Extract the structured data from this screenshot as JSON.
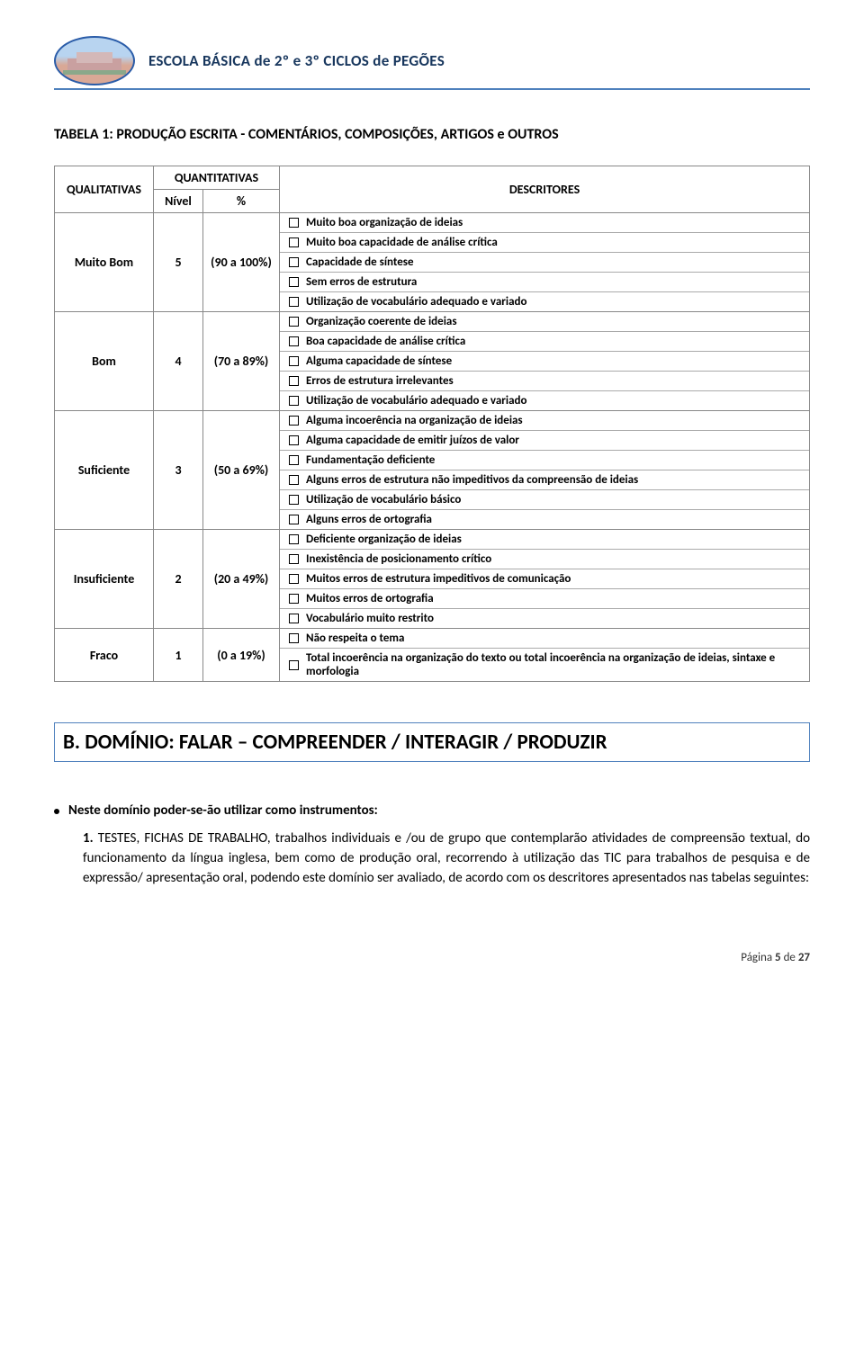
{
  "header": {
    "school_name": "ESCOLA BÁSICA de 2º e 3º CICLOS de PEGÕES"
  },
  "table": {
    "title": "TABELA 1: PRODUÇÃO ESCRITA - COMENTÁRIOS, COMPOSIÇÕES, ARTIGOS e OUTROS",
    "header_qual": "QUALITATIVAS",
    "header_quant": "QUANTITATIVAS",
    "header_nivel": "Nível",
    "header_pct": "%",
    "header_desc": "DESCRITORES",
    "rows": [
      {
        "qual": "Muito Bom",
        "nivel": "5",
        "pct": "(90 a 100%)",
        "descriptors": [
          "Muito boa organização de ideias",
          "Muito boa capacidade de análise crítica",
          "Capacidade de síntese",
          "Sem erros de estrutura",
          "Utilização de vocabulário adequado e variado"
        ]
      },
      {
        "qual": "Bom",
        "nivel": "4",
        "pct": "(70 a 89%)",
        "descriptors": [
          "Organização coerente de ideias",
          "Boa capacidade de análise crítica",
          "Alguma capacidade de síntese",
          "Erros de estrutura irrelevantes",
          "Utilização de vocabulário adequado e variado"
        ]
      },
      {
        "qual": "Suficiente",
        "nivel": "3",
        "pct": "(50 a 69%)",
        "descriptors": [
          "Alguma incoerência na organização de ideias",
          "Alguma capacidade de emitir juízos de valor",
          "Fundamentação deficiente",
          "Alguns erros de estrutura não impeditivos da compreensão de ideias",
          "Utilização de vocabulário básico",
          "Alguns erros de ortografia"
        ]
      },
      {
        "qual": "Insuficiente",
        "nivel": "2",
        "pct": "(20 a 49%)",
        "descriptors": [
          "Deficiente organização de ideias",
          "Inexistência de posicionamento crítico",
          "Muitos erros de estrutura impeditivos de comunicação",
          "Muitos erros de ortografia",
          "Vocabulário muito restrito"
        ]
      },
      {
        "qual": "Fraco",
        "nivel": "1",
        "pct": "(0 a 19%)",
        "descriptors": [
          "Não respeita o tema",
          "Total incoerência na organização do texto ou total incoerência na organização de ideias, sintaxe e morfologia"
        ]
      }
    ]
  },
  "section_b": {
    "title": "B. DOMÍNIO: FALAR – COMPREENDER / INTERAGIR / PRODUZIR"
  },
  "bullet": {
    "intro": "Neste domínio poder-se-ão utilizar como instrumentos:",
    "item_number": "1.",
    "item_text": "TESTES, FICHAS DE TRABALHO, trabalhos individuais e /ou de grupo que contemplarão atividades de compreensão textual, do funcionamento da língua inglesa, bem como de produção oral, recorrendo à utilização das TIC para trabalhos de pesquisa e de expressão/ apresentação oral, podendo este domínio ser avaliado, de acordo com os descritores apresentados nas tabelas seguintes:"
  },
  "footer": {
    "label": "Página ",
    "current": "5",
    "of_label": " de ",
    "total": "27"
  },
  "colors": {
    "accent": "#4f81bd",
    "heading": "#17365d"
  }
}
